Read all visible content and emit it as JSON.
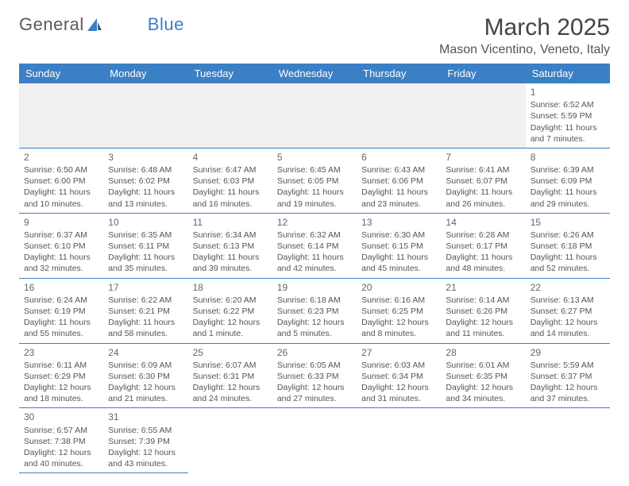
{
  "logo": {
    "part1": "General",
    "part2": "Blue"
  },
  "title": "March 2025",
  "location": "Mason Vicentino, Veneto, Italy",
  "colors": {
    "header_bg": "#3b7fc4",
    "header_text": "#ffffff",
    "border": "#3b7fc4",
    "text": "#555555",
    "empty_bg": "#f0f0f0"
  },
  "day_headers": [
    "Sunday",
    "Monday",
    "Tuesday",
    "Wednesday",
    "Thursday",
    "Friday",
    "Saturday"
  ],
  "weeks": [
    [
      null,
      null,
      null,
      null,
      null,
      null,
      {
        "n": "1",
        "sr": "6:52 AM",
        "ss": "5:59 PM",
        "dl": "11 hours and 7 minutes."
      }
    ],
    [
      {
        "n": "2",
        "sr": "6:50 AM",
        "ss": "6:00 PM",
        "dl": "11 hours and 10 minutes."
      },
      {
        "n": "3",
        "sr": "6:48 AM",
        "ss": "6:02 PM",
        "dl": "11 hours and 13 minutes."
      },
      {
        "n": "4",
        "sr": "6:47 AM",
        "ss": "6:03 PM",
        "dl": "11 hours and 16 minutes."
      },
      {
        "n": "5",
        "sr": "6:45 AM",
        "ss": "6:05 PM",
        "dl": "11 hours and 19 minutes."
      },
      {
        "n": "6",
        "sr": "6:43 AM",
        "ss": "6:06 PM",
        "dl": "11 hours and 23 minutes."
      },
      {
        "n": "7",
        "sr": "6:41 AM",
        "ss": "6:07 PM",
        "dl": "11 hours and 26 minutes."
      },
      {
        "n": "8",
        "sr": "6:39 AM",
        "ss": "6:09 PM",
        "dl": "11 hours and 29 minutes."
      }
    ],
    [
      {
        "n": "9",
        "sr": "6:37 AM",
        "ss": "6:10 PM",
        "dl": "11 hours and 32 minutes."
      },
      {
        "n": "10",
        "sr": "6:35 AM",
        "ss": "6:11 PM",
        "dl": "11 hours and 35 minutes."
      },
      {
        "n": "11",
        "sr": "6:34 AM",
        "ss": "6:13 PM",
        "dl": "11 hours and 39 minutes."
      },
      {
        "n": "12",
        "sr": "6:32 AM",
        "ss": "6:14 PM",
        "dl": "11 hours and 42 minutes."
      },
      {
        "n": "13",
        "sr": "6:30 AM",
        "ss": "6:15 PM",
        "dl": "11 hours and 45 minutes."
      },
      {
        "n": "14",
        "sr": "6:28 AM",
        "ss": "6:17 PM",
        "dl": "11 hours and 48 minutes."
      },
      {
        "n": "15",
        "sr": "6:26 AM",
        "ss": "6:18 PM",
        "dl": "11 hours and 52 minutes."
      }
    ],
    [
      {
        "n": "16",
        "sr": "6:24 AM",
        "ss": "6:19 PM",
        "dl": "11 hours and 55 minutes."
      },
      {
        "n": "17",
        "sr": "6:22 AM",
        "ss": "6:21 PM",
        "dl": "11 hours and 58 minutes."
      },
      {
        "n": "18",
        "sr": "6:20 AM",
        "ss": "6:22 PM",
        "dl": "12 hours and 1 minute."
      },
      {
        "n": "19",
        "sr": "6:18 AM",
        "ss": "6:23 PM",
        "dl": "12 hours and 5 minutes."
      },
      {
        "n": "20",
        "sr": "6:16 AM",
        "ss": "6:25 PM",
        "dl": "12 hours and 8 minutes."
      },
      {
        "n": "21",
        "sr": "6:14 AM",
        "ss": "6:26 PM",
        "dl": "12 hours and 11 minutes."
      },
      {
        "n": "22",
        "sr": "6:13 AM",
        "ss": "6:27 PM",
        "dl": "12 hours and 14 minutes."
      }
    ],
    [
      {
        "n": "23",
        "sr": "6:11 AM",
        "ss": "6:29 PM",
        "dl": "12 hours and 18 minutes."
      },
      {
        "n": "24",
        "sr": "6:09 AM",
        "ss": "6:30 PM",
        "dl": "12 hours and 21 minutes."
      },
      {
        "n": "25",
        "sr": "6:07 AM",
        "ss": "6:31 PM",
        "dl": "12 hours and 24 minutes."
      },
      {
        "n": "26",
        "sr": "6:05 AM",
        "ss": "6:33 PM",
        "dl": "12 hours and 27 minutes."
      },
      {
        "n": "27",
        "sr": "6:03 AM",
        "ss": "6:34 PM",
        "dl": "12 hours and 31 minutes."
      },
      {
        "n": "28",
        "sr": "6:01 AM",
        "ss": "6:35 PM",
        "dl": "12 hours and 34 minutes."
      },
      {
        "n": "29",
        "sr": "5:59 AM",
        "ss": "6:37 PM",
        "dl": "12 hours and 37 minutes."
      }
    ],
    [
      {
        "n": "30",
        "sr": "6:57 AM",
        "ss": "7:38 PM",
        "dl": "12 hours and 40 minutes."
      },
      {
        "n": "31",
        "sr": "6:55 AM",
        "ss": "7:39 PM",
        "dl": "12 hours and 43 minutes."
      },
      null,
      null,
      null,
      null,
      null
    ]
  ],
  "labels": {
    "sunrise": "Sunrise:",
    "sunset": "Sunset:",
    "daylight": "Daylight:"
  }
}
